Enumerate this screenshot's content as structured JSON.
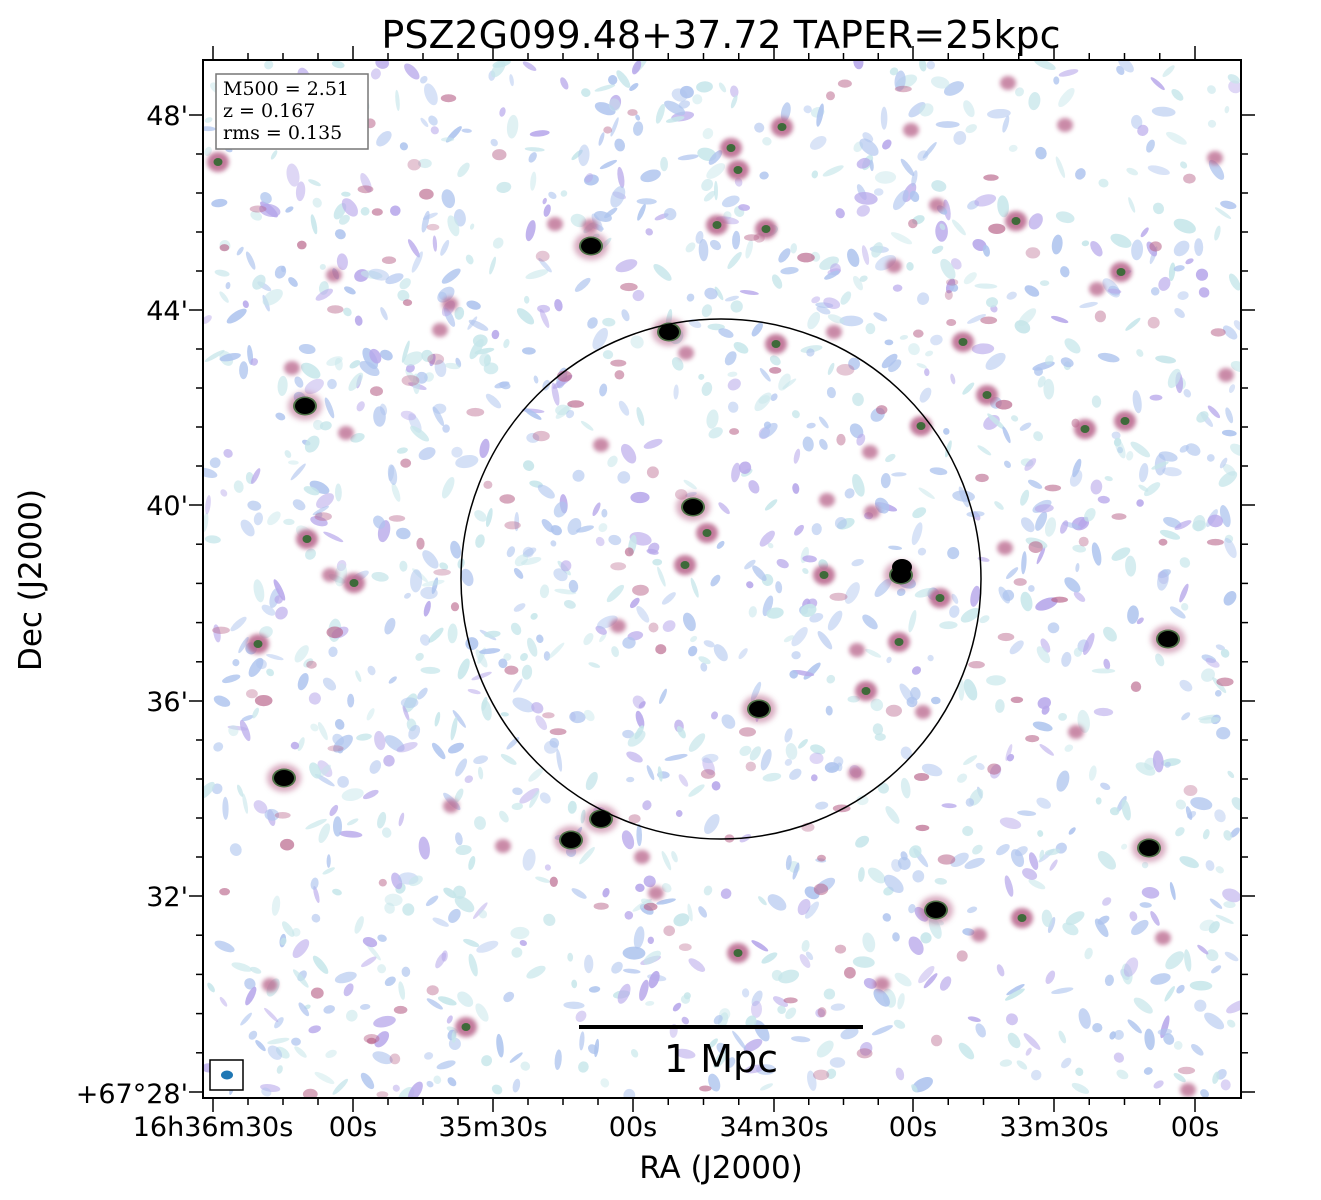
{
  "title": "PSZ2G099.48+37.72 TAPER=25kpc",
  "xlabel": "RA (J2000)",
  "ylabel": "Dec (J2000)",
  "x_ticks": [
    "16h36m30s",
    "00s",
    "35m30s",
    "00s",
    "34m30s",
    "00s",
    "33m30s",
    "00s"
  ],
  "y_ticks": [
    "48'",
    "44'",
    "40'",
    "36'",
    "32'",
    "+67°28'"
  ],
  "info_box": {
    "line1": "M500 = 2.51",
    "line2": "z = 0.167",
    "line3": "rms = 0.135"
  },
  "scale_bar": {
    "label": "1 Mpc"
  },
  "colors": {
    "noise_light": "#c6e6ea",
    "noise_blue": "#aec4ee",
    "noise_violet": "#b7a7ea",
    "source_magenta": "#b8648a",
    "source_core_green": "#3f6a3a",
    "bright_core": "#000000",
    "beam": "#1f77b4"
  }
}
